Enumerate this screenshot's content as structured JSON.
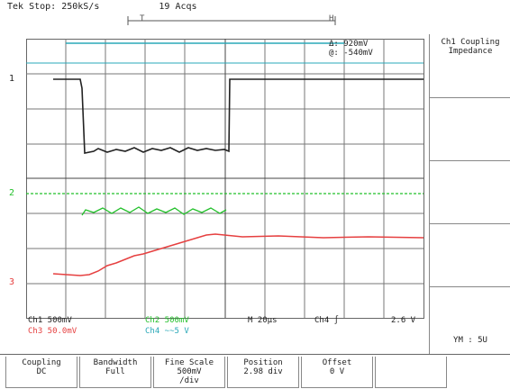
{
  "top_bar": {
    "status": "Tek Stop: 250kS/s",
    "acquisitions": "19 Acqs"
  },
  "cursor": {
    "delta_label": "Δ: 920mV",
    "at_label": "@: -540mV"
  },
  "channel_markers": {
    "ch1": "1",
    "ch2": "2",
    "ch3": "3"
  },
  "status_line": {
    "ch1": "Ch1  500mV",
    "ch2": "Ch2  500mV",
    "ch3": "Ch3  50.0mV",
    "ch4": "Ch4  ~~5 V",
    "timebase": "M  20μs",
    "trigger": "Ch4 ∫",
    "level": "2.6 V"
  },
  "sidebar": {
    "title": "Ch1 Coupling Impedance",
    "footer": "YM : 5U"
  },
  "menu": [
    {
      "label": "Coupling",
      "value": "DC"
    },
    {
      "label": "Bandwidth",
      "value": "Full"
    },
    {
      "label": "Fine Scale",
      "value": "500mV\n/div"
    },
    {
      "label": "Position",
      "value": "2.98 div"
    },
    {
      "label": "Offset",
      "value": "0 V"
    }
  ],
  "colors": {
    "ch1": "#222222",
    "ch2": "#22c02a",
    "ch3": "#e64040",
    "cursor": "#2aa8b8"
  }
}
